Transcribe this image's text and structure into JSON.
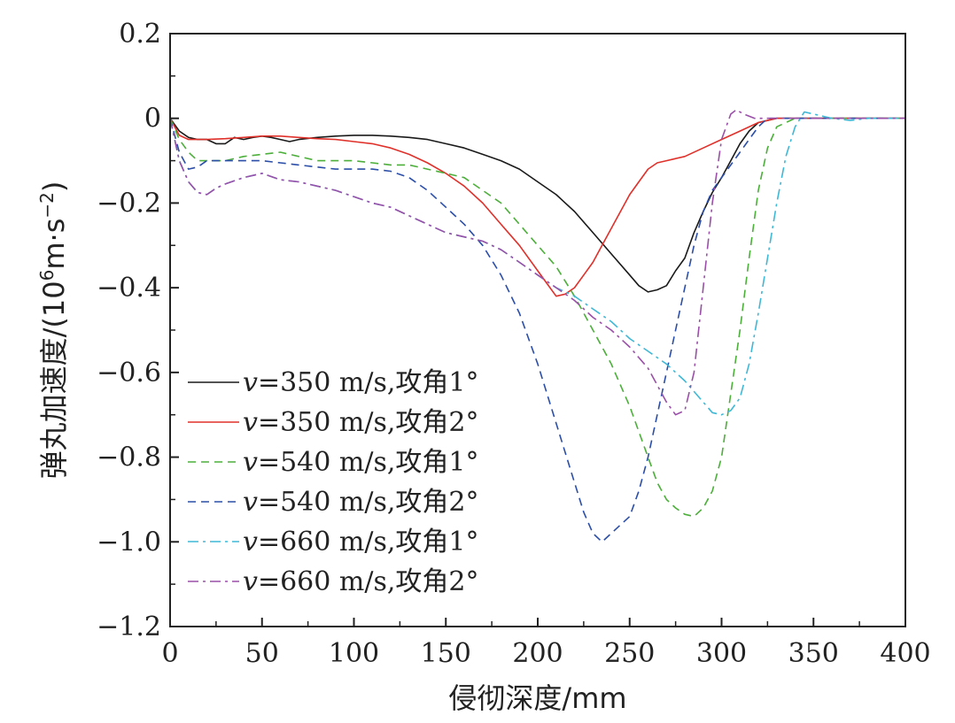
{
  "chart_data": {
    "type": "line",
    "title": "",
    "xlabel": "侵彻深度/mm",
    "ylabel_prefix": "弹丸加速度/(10",
    "ylabel_sup1": "6",
    "ylabel_mid": "m·s",
    "ylabel_sup2": "−2",
    "ylabel_suffix": ")",
    "xlim": [
      0,
      400
    ],
    "ylim": [
      -1.2,
      0.2
    ],
    "x_ticks": [
      0,
      50,
      100,
      150,
      200,
      250,
      300,
      350,
      400
    ],
    "x_tick_labels": [
      "0",
      "50",
      "100",
      "150",
      "200",
      "250",
      "300",
      "350",
      "400"
    ],
    "y_ticks": [
      0.2,
      0,
      -0.2,
      -0.4,
      -0.6,
      -0.8,
      -1.0,
      -1.2
    ],
    "y_tick_labels": [
      "0.2",
      "0",
      "−0.2",
      "−0.4",
      "−0.6",
      "−0.8",
      "−1.0",
      "−1.2"
    ],
    "grid": false,
    "legend_position": "lower-left",
    "series": [
      {
        "name_var": "v",
        "name_rest": "=350 m/s,攻角1°",
        "color": "#1a1a1a",
        "dash": "solid",
        "points": [
          [
            0,
            0
          ],
          [
            5,
            -0.03
          ],
          [
            10,
            -0.045
          ],
          [
            15,
            -0.05
          ],
          [
            20,
            -0.05
          ],
          [
            25,
            -0.06
          ],
          [
            30,
            -0.06
          ],
          [
            35,
            -0.045
          ],
          [
            40,
            -0.05
          ],
          [
            45,
            -0.045
          ],
          [
            50,
            -0.042
          ],
          [
            55,
            -0.045
          ],
          [
            60,
            -0.05
          ],
          [
            65,
            -0.055
          ],
          [
            70,
            -0.05
          ],
          [
            80,
            -0.045
          ],
          [
            90,
            -0.042
          ],
          [
            100,
            -0.04
          ],
          [
            110,
            -0.04
          ],
          [
            120,
            -0.042
          ],
          [
            130,
            -0.045
          ],
          [
            140,
            -0.05
          ],
          [
            150,
            -0.06
          ],
          [
            160,
            -0.07
          ],
          [
            170,
            -0.085
          ],
          [
            180,
            -0.1
          ],
          [
            190,
            -0.12
          ],
          [
            200,
            -0.15
          ],
          [
            210,
            -0.18
          ],
          [
            220,
            -0.22
          ],
          [
            230,
            -0.27
          ],
          [
            240,
            -0.32
          ],
          [
            250,
            -0.37
          ],
          [
            255,
            -0.395
          ],
          [
            260,
            -0.41
          ],
          [
            265,
            -0.405
          ],
          [
            270,
            -0.395
          ],
          [
            275,
            -0.36
          ],
          [
            280,
            -0.33
          ],
          [
            285,
            -0.27
          ],
          [
            290,
            -0.22
          ],
          [
            295,
            -0.175
          ],
          [
            300,
            -0.14
          ],
          [
            305,
            -0.1
          ],
          [
            310,
            -0.06
          ],
          [
            315,
            -0.03
          ],
          [
            320,
            -0.01
          ],
          [
            330,
            0
          ],
          [
            400,
            0
          ]
        ]
      },
      {
        "name_var": "v",
        "name_rest": "=350 m/s,攻角2°",
        "color": "#e0302a",
        "dash": "solid",
        "points": [
          [
            0,
            0
          ],
          [
            5,
            -0.04
          ],
          [
            10,
            -0.05
          ],
          [
            20,
            -0.05
          ],
          [
            30,
            -0.048
          ],
          [
            40,
            -0.045
          ],
          [
            50,
            -0.042
          ],
          [
            60,
            -0.042
          ],
          [
            70,
            -0.045
          ],
          [
            80,
            -0.048
          ],
          [
            90,
            -0.05
          ],
          [
            100,
            -0.055
          ],
          [
            110,
            -0.06
          ],
          [
            120,
            -0.07
          ],
          [
            130,
            -0.085
          ],
          [
            140,
            -0.105
          ],
          [
            150,
            -0.13
          ],
          [
            160,
            -0.16
          ],
          [
            170,
            -0.2
          ],
          [
            180,
            -0.25
          ],
          [
            190,
            -0.3
          ],
          [
            200,
            -0.36
          ],
          [
            205,
            -0.39
          ],
          [
            210,
            -0.42
          ],
          [
            215,
            -0.415
          ],
          [
            220,
            -0.4
          ],
          [
            225,
            -0.37
          ],
          [
            230,
            -0.34
          ],
          [
            235,
            -0.3
          ],
          [
            240,
            -0.26
          ],
          [
            245,
            -0.22
          ],
          [
            250,
            -0.18
          ],
          [
            255,
            -0.15
          ],
          [
            260,
            -0.12
          ],
          [
            265,
            -0.105
          ],
          [
            270,
            -0.1
          ],
          [
            280,
            -0.09
          ],
          [
            290,
            -0.07
          ],
          [
            300,
            -0.05
          ],
          [
            310,
            -0.03
          ],
          [
            320,
            -0.01
          ],
          [
            330,
            0
          ],
          [
            400,
            0
          ]
        ]
      },
      {
        "name_var": "v",
        "name_rest": "=540 m/s,攻角1°",
        "color": "#4caf3a",
        "dash": "dashed",
        "points": [
          [
            0,
            0
          ],
          [
            5,
            -0.05
          ],
          [
            10,
            -0.08
          ],
          [
            15,
            -0.1
          ],
          [
            20,
            -0.1
          ],
          [
            30,
            -0.1
          ],
          [
            40,
            -0.09
          ],
          [
            50,
            -0.085
          ],
          [
            60,
            -0.08
          ],
          [
            70,
            -0.09
          ],
          [
            80,
            -0.1
          ],
          [
            90,
            -0.1
          ],
          [
            100,
            -0.1
          ],
          [
            110,
            -0.105
          ],
          [
            120,
            -0.11
          ],
          [
            130,
            -0.11
          ],
          [
            140,
            -0.12
          ],
          [
            150,
            -0.13
          ],
          [
            160,
            -0.14
          ],
          [
            170,
            -0.17
          ],
          [
            180,
            -0.2
          ],
          [
            190,
            -0.25
          ],
          [
            200,
            -0.3
          ],
          [
            210,
            -0.35
          ],
          [
            220,
            -0.42
          ],
          [
            230,
            -0.5
          ],
          [
            240,
            -0.58
          ],
          [
            250,
            -0.68
          ],
          [
            260,
            -0.8
          ],
          [
            265,
            -0.86
          ],
          [
            270,
            -0.9
          ],
          [
            275,
            -0.92
          ],
          [
            280,
            -0.935
          ],
          [
            285,
            -0.94
          ],
          [
            290,
            -0.92
          ],
          [
            295,
            -0.88
          ],
          [
            300,
            -0.8
          ],
          [
            305,
            -0.65
          ],
          [
            310,
            -0.5
          ],
          [
            315,
            -0.33
          ],
          [
            320,
            -0.17
          ],
          [
            325,
            -0.07
          ],
          [
            330,
            -0.02
          ],
          [
            335,
            -0.01
          ],
          [
            340,
            0
          ],
          [
            400,
            0
          ]
        ]
      },
      {
        "name_var": "v",
        "name_rest": "=540 m/s,攻角2°",
        "color": "#2b4ea8",
        "dash": "dashed",
        "points": [
          [
            0,
            0
          ],
          [
            5,
            -0.08
          ],
          [
            10,
            -0.12
          ],
          [
            15,
            -0.115
          ],
          [
            20,
            -0.1
          ],
          [
            30,
            -0.1
          ],
          [
            40,
            -0.1
          ],
          [
            50,
            -0.1
          ],
          [
            60,
            -0.105
          ],
          [
            70,
            -0.11
          ],
          [
            80,
            -0.115
          ],
          [
            90,
            -0.12
          ],
          [
            100,
            -0.12
          ],
          [
            110,
            -0.12
          ],
          [
            120,
            -0.125
          ],
          [
            130,
            -0.14
          ],
          [
            140,
            -0.17
          ],
          [
            150,
            -0.21
          ],
          [
            160,
            -0.25
          ],
          [
            170,
            -0.3
          ],
          [
            180,
            -0.37
          ],
          [
            190,
            -0.46
          ],
          [
            200,
            -0.58
          ],
          [
            210,
            -0.72
          ],
          [
            220,
            -0.86
          ],
          [
            225,
            -0.93
          ],
          [
            230,
            -0.98
          ],
          [
            235,
            -1.0
          ],
          [
            240,
            -0.98
          ],
          [
            245,
            -0.96
          ],
          [
            250,
            -0.94
          ],
          [
            255,
            -0.88
          ],
          [
            260,
            -0.8
          ],
          [
            265,
            -0.7
          ],
          [
            270,
            -0.6
          ],
          [
            275,
            -0.5
          ],
          [
            280,
            -0.4
          ],
          [
            285,
            -0.3
          ],
          [
            290,
            -0.22
          ],
          [
            295,
            -0.17
          ],
          [
            300,
            -0.14
          ],
          [
            305,
            -0.11
          ],
          [
            310,
            -0.08
          ],
          [
            315,
            -0.05
          ],
          [
            320,
            -0.02
          ],
          [
            325,
            0
          ],
          [
            400,
            0
          ]
        ]
      },
      {
        "name_var": "v",
        "name_rest": "=660 m/s,攻角1°",
        "color": "#3fb8d6",
        "dash": "dashdot",
        "points": [
          [
            0,
            0
          ],
          [
            5,
            -0.1
          ],
          [
            10,
            -0.15
          ],
          [
            15,
            -0.175
          ],
          [
            20,
            -0.18
          ],
          [
            25,
            -0.165
          ],
          [
            30,
            -0.155
          ],
          [
            40,
            -0.14
          ],
          [
            50,
            -0.13
          ],
          [
            60,
            -0.145
          ],
          [
            70,
            -0.15
          ],
          [
            80,
            -0.16
          ],
          [
            90,
            -0.17
          ],
          [
            100,
            -0.185
          ],
          [
            110,
            -0.2
          ],
          [
            120,
            -0.21
          ],
          [
            130,
            -0.23
          ],
          [
            140,
            -0.25
          ],
          [
            150,
            -0.27
          ],
          [
            160,
            -0.28
          ],
          [
            170,
            -0.29
          ],
          [
            180,
            -0.31
          ],
          [
            190,
            -0.34
          ],
          [
            200,
            -0.37
          ],
          [
            210,
            -0.4
          ],
          [
            220,
            -0.42
          ],
          [
            230,
            -0.45
          ],
          [
            240,
            -0.48
          ],
          [
            250,
            -0.52
          ],
          [
            260,
            -0.55
          ],
          [
            270,
            -0.58
          ],
          [
            280,
            -0.62
          ],
          [
            290,
            -0.67
          ],
          [
            295,
            -0.695
          ],
          [
            300,
            -0.7
          ],
          [
            305,
            -0.69
          ],
          [
            310,
            -0.66
          ],
          [
            315,
            -0.58
          ],
          [
            320,
            -0.46
          ],
          [
            325,
            -0.33
          ],
          [
            330,
            -0.2
          ],
          [
            335,
            -0.09
          ],
          [
            340,
            -0.02
          ],
          [
            345,
            0.015
          ],
          [
            350,
            0.01
          ],
          [
            360,
            0
          ],
          [
            370,
            -0.005
          ],
          [
            380,
            0
          ],
          [
            400,
            0
          ]
        ]
      },
      {
        "name_var": "v",
        "name_rest": "=660 m/s,攻角2°",
        "color": "#9a4fa8",
        "dash": "dashdot",
        "points": [
          [
            0,
            0
          ],
          [
            5,
            -0.1
          ],
          [
            10,
            -0.15
          ],
          [
            15,
            -0.175
          ],
          [
            20,
            -0.18
          ],
          [
            25,
            -0.165
          ],
          [
            30,
            -0.155
          ],
          [
            40,
            -0.14
          ],
          [
            50,
            -0.13
          ],
          [
            60,
            -0.145
          ],
          [
            70,
            -0.15
          ],
          [
            80,
            -0.16
          ],
          [
            90,
            -0.17
          ],
          [
            100,
            -0.185
          ],
          [
            110,
            -0.2
          ],
          [
            120,
            -0.21
          ],
          [
            130,
            -0.23
          ],
          [
            140,
            -0.25
          ],
          [
            150,
            -0.27
          ],
          [
            160,
            -0.28
          ],
          [
            170,
            -0.29
          ],
          [
            180,
            -0.31
          ],
          [
            190,
            -0.34
          ],
          [
            200,
            -0.37
          ],
          [
            210,
            -0.4
          ],
          [
            220,
            -0.43
          ],
          [
            230,
            -0.47
          ],
          [
            240,
            -0.5
          ],
          [
            250,
            -0.54
          ],
          [
            260,
            -0.59
          ],
          [
            265,
            -0.63
          ],
          [
            270,
            -0.67
          ],
          [
            275,
            -0.7
          ],
          [
            280,
            -0.69
          ],
          [
            285,
            -0.6
          ],
          [
            290,
            -0.4
          ],
          [
            295,
            -0.2
          ],
          [
            300,
            -0.05
          ],
          [
            305,
            0.01
          ],
          [
            308,
            0.02
          ],
          [
            312,
            0.01
          ],
          [
            318,
            0
          ],
          [
            400,
            0
          ]
        ]
      }
    ]
  }
}
